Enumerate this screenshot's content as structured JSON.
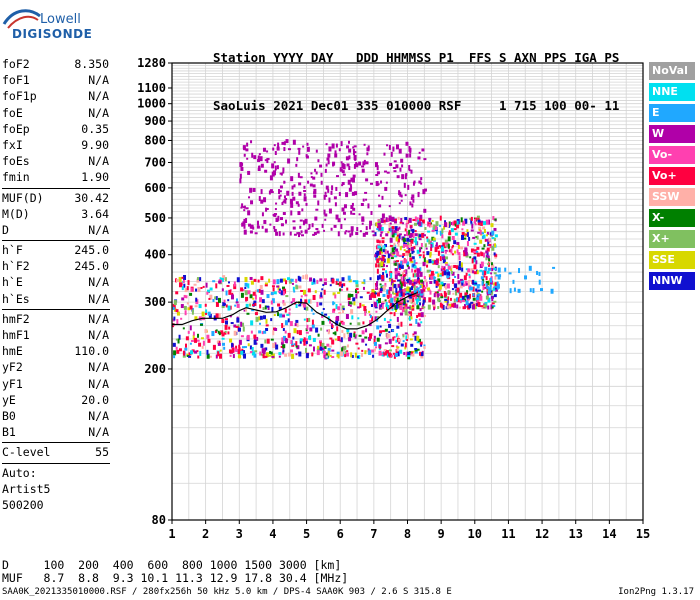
{
  "logo": {
    "line1": "Lowell",
    "line2": "DIGISONDE"
  },
  "header": {
    "labels": "Station YYYY DAY   DDD HHMMSS P1  FFS S AXN PPS IGA PS",
    "values": "SaoLuis 2021 Dec01 335 010000 RSF     1 715 100 00- 11"
  },
  "params_a": [
    {
      "name": "foF2",
      "value": "8.350"
    },
    {
      "name": "foF1",
      "value": "N/A"
    },
    {
      "name": "foF1p",
      "value": "N/A"
    },
    {
      "name": "foE",
      "value": "N/A"
    },
    {
      "name": "foEp",
      "value": "0.35"
    },
    {
      "name": "fxI",
      "value": "9.90"
    },
    {
      "name": "foEs",
      "value": "N/A"
    },
    {
      "name": "fmin",
      "value": "1.90"
    }
  ],
  "params_b": [
    {
      "name": "MUF(D)",
      "value": "30.42"
    },
    {
      "name": "M(D)",
      "value": "3.64"
    },
    {
      "name": "D",
      "value": "N/A"
    }
  ],
  "params_c": [
    {
      "name": "h`F",
      "value": "245.0"
    },
    {
      "name": "h`F2",
      "value": "245.0"
    },
    {
      "name": "h`E",
      "value": "N/A"
    },
    {
      "name": "h`Es",
      "value": "N/A"
    }
  ],
  "params_d": [
    {
      "name": "hmF2",
      "value": "N/A"
    },
    {
      "name": "hmF1",
      "value": "N/A"
    },
    {
      "name": "hmE",
      "value": "110.0"
    },
    {
      "name": "yF2",
      "value": "N/A"
    },
    {
      "name": "yF1",
      "value": "N/A"
    },
    {
      "name": "yE",
      "value": "20.0"
    },
    {
      "name": "B0",
      "value": "N/A"
    },
    {
      "name": "B1",
      "value": "N/A"
    }
  ],
  "params_e": [
    {
      "name": "C-level",
      "value": "55"
    }
  ],
  "params_f": [
    "Auto:",
    "Artist5",
    "500200"
  ],
  "legend": [
    {
      "label": "NoVal",
      "color": "#a0a0a0"
    },
    {
      "label": "NNE",
      "color": "#00e0f0"
    },
    {
      "label": "E",
      "color": "#20a8ff"
    },
    {
      "label": "W",
      "color": "#b000a8"
    },
    {
      "label": "Vo-",
      "color": "#ff40b0"
    },
    {
      "label": "Vo+",
      "color": "#ff0040"
    },
    {
      "label": "SSW",
      "color": "#ffb0a8"
    },
    {
      "label": "X-",
      "color": "#008000"
    },
    {
      "label": "X+",
      "color": "#80c060"
    },
    {
      "label": "SSE",
      "color": "#d8d800"
    },
    {
      "label": "NNW",
      "color": "#1010d0"
    }
  ],
  "footer": {
    "d_row": "D     100  200  400  600  800 1000 1500 3000 [km]",
    "muf_row": "MUF   8.7  8.8  9.3 10.1 11.3 12.9 17.8 30.4 [MHz]",
    "file": "SAA0K_2021335010000.RSF / 280fx256h 50 kHz 5.0 km / DPS-4 SAA0K 903 / 2.6 S 315.8 E",
    "version": "Ion2Png 1.3.17"
  },
  "chart_data": {
    "type": "scatter",
    "title": "",
    "xlabel": "",
    "ylabel": "",
    "xlim": [
      1,
      15
    ],
    "ylim": [
      80,
      1280
    ],
    "yscale": "log",
    "x_ticks": [
      1,
      2,
      3,
      4,
      5,
      6,
      7,
      8,
      9,
      10,
      11,
      12,
      13,
      14,
      15
    ],
    "y_ticks": [
      80,
      200,
      300,
      400,
      500,
      600,
      700,
      800,
      900,
      1000,
      1100,
      1280
    ],
    "grid": true,
    "trace": {
      "name": "",
      "x": [
        1.0,
        1.3,
        1.6,
        1.9,
        2.2,
        2.5,
        2.8,
        3.0,
        3.2,
        3.5,
        3.8,
        4.1,
        4.4,
        4.7,
        5.0,
        5.3,
        5.6,
        5.9,
        6.2,
        6.5,
        6.8,
        7.1,
        7.4,
        7.7,
        8.0,
        8.3
      ],
      "y": [
        262,
        262,
        268,
        272,
        272,
        272,
        278,
        285,
        290,
        286,
        282,
        283,
        290,
        300,
        298,
        282,
        273,
        262,
        255,
        255,
        260,
        270,
        285,
        300,
        310,
        318
      ]
    },
    "clusters": [
      {
        "name": "F-trace band",
        "color": "mixed",
        "fmin": 1.0,
        "fmax": 8.5,
        "hmin": 215,
        "hmax": 350,
        "density": "high"
      },
      {
        "name": "F2 spread",
        "color": "mixed",
        "fmin": 7.0,
        "fmax": 10.6,
        "hmin": 290,
        "hmax": 500,
        "density": "high"
      },
      {
        "name": "2F echoes",
        "color": "W",
        "fmin": 3.0,
        "fmax": 8.5,
        "hmin": 450,
        "hmax": 800,
        "density": "medium"
      },
      {
        "name": "Oblique echoes",
        "color": "E",
        "fmin": 9.8,
        "fmax": 12.3,
        "hmin": 320,
        "hmax": 370,
        "density": "low"
      }
    ]
  }
}
